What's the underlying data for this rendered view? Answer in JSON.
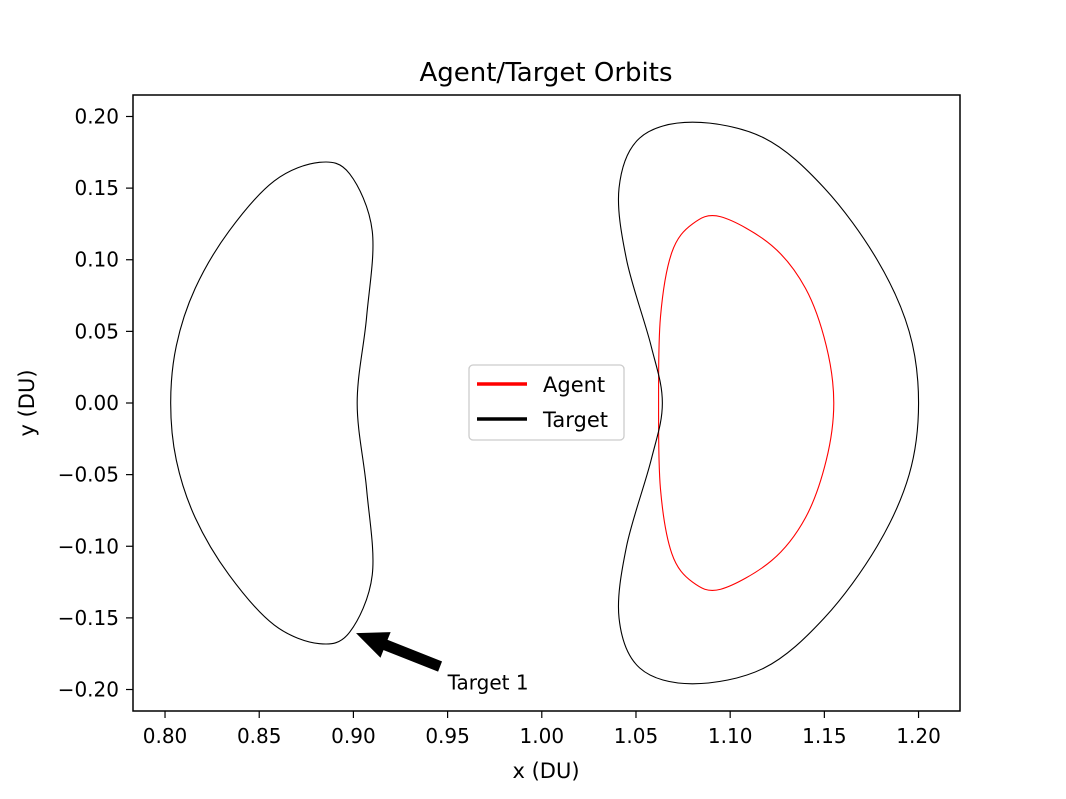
{
  "chart_data": {
    "type": "line",
    "title": "Agent/Target Orbits",
    "xlabel": "x (DU)",
    "ylabel": "y (DU)",
    "xlim": [
      0.783,
      1.222
    ],
    "ylim": [
      -0.215,
      0.215
    ],
    "x_ticks": [
      "0.80",
      "0.85",
      "0.90",
      "0.95",
      "1.00",
      "1.05",
      "1.10",
      "1.15",
      "1.20"
    ],
    "y_ticks": [
      "0.20",
      "0.15",
      "0.10",
      "0.05",
      "0.00",
      "−0.05",
      "−0.10",
      "−0.15",
      "−0.20"
    ],
    "grid": false,
    "legend": {
      "placement": "center",
      "entries": [
        {
          "label": "Agent",
          "color": "#ff0000"
        },
        {
          "label": "Target",
          "color": "#000000"
        }
      ]
    },
    "series": [
      {
        "name": "Agent",
        "color": "#ff0000",
        "points": [
          [
            1.155,
            0.0
          ],
          [
            1.151,
            0.04
          ],
          [
            1.14,
            0.08
          ],
          [
            1.122,
            0.11
          ],
          [
            1.095,
            0.13
          ],
          [
            1.08,
            0.125
          ],
          [
            1.069,
            0.105
          ],
          [
            1.063,
            0.06
          ],
          [
            1.062,
            0.0
          ],
          [
            1.063,
            -0.06
          ],
          [
            1.069,
            -0.105
          ],
          [
            1.08,
            -0.125
          ],
          [
            1.095,
            -0.13
          ],
          [
            1.122,
            -0.11
          ],
          [
            1.14,
            -0.08
          ],
          [
            1.151,
            -0.04
          ],
          [
            1.155,
            0.0
          ]
        ]
      },
      {
        "name": "Target",
        "color": "#000000",
        "points": [
          [
            0.803,
            0.0
          ],
          [
            0.806,
            0.04
          ],
          [
            0.816,
            0.08
          ],
          [
            0.834,
            0.12
          ],
          [
            0.858,
            0.155
          ],
          [
            0.882,
            0.168
          ],
          [
            0.898,
            0.16
          ],
          [
            0.91,
            0.12
          ],
          [
            0.907,
            0.06
          ],
          [
            0.902,
            0.0
          ],
          [
            0.907,
            -0.06
          ],
          [
            0.91,
            -0.12
          ],
          [
            0.898,
            -0.16
          ],
          [
            0.882,
            -0.168
          ],
          [
            0.858,
            -0.155
          ],
          [
            0.834,
            -0.12
          ],
          [
            0.816,
            -0.08
          ],
          [
            0.806,
            -0.04
          ],
          [
            0.803,
            0.0
          ]
        ]
      },
      {
        "name": "Target",
        "color": "#000000",
        "points": [
          [
            1.2,
            0.0
          ],
          [
            1.195,
            0.05
          ],
          [
            1.178,
            0.1
          ],
          [
            1.15,
            0.15
          ],
          [
            1.118,
            0.185
          ],
          [
            1.08,
            0.196
          ],
          [
            1.052,
            0.185
          ],
          [
            1.041,
            0.15
          ],
          [
            1.045,
            0.1
          ],
          [
            1.058,
            0.04
          ],
          [
            1.064,
            0.0
          ],
          [
            1.058,
            -0.04
          ],
          [
            1.045,
            -0.1
          ],
          [
            1.041,
            -0.15
          ],
          [
            1.052,
            -0.185
          ],
          [
            1.08,
            -0.196
          ],
          [
            1.118,
            -0.185
          ],
          [
            1.15,
            -0.15
          ],
          [
            1.178,
            -0.1
          ],
          [
            1.195,
            -0.05
          ],
          [
            1.2,
            0.0
          ]
        ]
      }
    ],
    "annotations": [
      {
        "text": "Target 1",
        "xy": [
          0.902,
          -0.161
        ],
        "xytext": [
          0.95,
          -0.195
        ]
      }
    ]
  }
}
